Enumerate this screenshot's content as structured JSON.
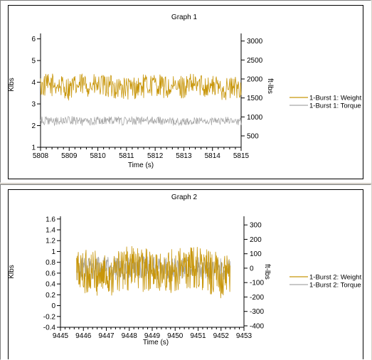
{
  "chart_data": [
    {
      "type": "line",
      "title": "Graph 1",
      "xlabel": "Time (s)",
      "ylabel": "Klbs",
      "y2label": "ft-lbs",
      "xlim": [
        5808,
        5815
      ],
      "x_ticks": [
        "5808",
        "5809",
        "5810",
        "5811",
        "5812",
        "5813",
        "5814",
        "5815"
      ],
      "ylim": [
        1,
        6.25
      ],
      "y_ticks": [
        "1",
        "2",
        "3",
        "4",
        "5",
        "6"
      ],
      "y2lim": [
        200,
        3200
      ],
      "y2_ticks": [
        "500",
        "1000",
        "1500",
        "2000",
        "2500",
        "3000"
      ],
      "legend_position": "right",
      "series": [
        {
          "name": "1-Burst 1: Weight",
          "axis": "left",
          "color": "#c8960a",
          "x": [
            5808,
            5808.5,
            5809,
            5809.5,
            5810,
            5810.5,
            5811,
            5811.5,
            5812,
            5812.5,
            5813,
            5813.5,
            5814,
            5814.5,
            5815
          ],
          "values": [
            3.8,
            3.9,
            3.7,
            3.9,
            3.8,
            3.8,
            3.7,
            3.8,
            3.9,
            3.7,
            3.8,
            3.9,
            3.8,
            3.7,
            3.8
          ],
          "noise": 0.55
        },
        {
          "name": "1-Burst 1: Torque",
          "axis": "right",
          "color": "#a8a8a8",
          "x": [
            5808,
            5808.5,
            5809,
            5809.5,
            5810,
            5810.5,
            5811,
            5811.5,
            5812,
            5812.5,
            5813,
            5813.5,
            5814,
            5814.5,
            5815
          ],
          "values": [
            900,
            880,
            920,
            870,
            900,
            920,
            880,
            900,
            910,
            880,
            870,
            900,
            880,
            900,
            890
          ],
          "noise": 110
        }
      ]
    },
    {
      "type": "line",
      "title": "Graph 2",
      "xlabel": "Time (s)",
      "ylabel": "Klbs",
      "y2label": "ft-lbs",
      "xlim": [
        9445,
        9453
      ],
      "x_ticks": [
        "9445",
        "9446",
        "9447",
        "9448",
        "9449",
        "9450",
        "9451",
        "9452",
        "9453"
      ],
      "ylim": [
        -0.4,
        1.65
      ],
      "y_ticks": [
        "-0.4",
        "-0.2",
        "0",
        "0.2",
        "0.4",
        "0.6",
        "0.8",
        "1",
        "1.2",
        "1.4",
        "1.6"
      ],
      "y2lim": [
        -410,
        360
      ],
      "y2_ticks": [
        "-400",
        "-300",
        "-200",
        "-100",
        "0",
        "100",
        "200",
        "300"
      ],
      "legend_position": "right",
      "series": [
        {
          "name": "1-Burst 2: Weight",
          "axis": "left",
          "color": "#c8960a",
          "x": [
            9445.7,
            9446,
            9446.5,
            9447,
            9447.5,
            9448,
            9448.5,
            9449,
            9449.5,
            9450,
            9450.5,
            9451,
            9451.5,
            9452,
            9452.4
          ],
          "values": [
            0.65,
            0.62,
            0.6,
            0.58,
            0.62,
            0.7,
            0.68,
            0.62,
            0.6,
            0.65,
            0.7,
            0.7,
            0.62,
            0.55,
            0.5
          ],
          "noise": 0.42
        },
        {
          "name": "1-Burst 2: Torque",
          "axis": "right",
          "color": "#a8a8a8",
          "x": [
            9445.7,
            9446,
            9446.5,
            9447,
            9447.5,
            9448,
            9448.5,
            9449,
            9449.5,
            9450,
            9450.5,
            9451,
            9451.5,
            9452,
            9452.4
          ],
          "values": [
            -10,
            -5,
            0,
            5,
            -5,
            0,
            10,
            5,
            0,
            -5,
            0,
            5,
            0,
            -5,
            -10
          ],
          "noise": 80
        }
      ]
    }
  ]
}
